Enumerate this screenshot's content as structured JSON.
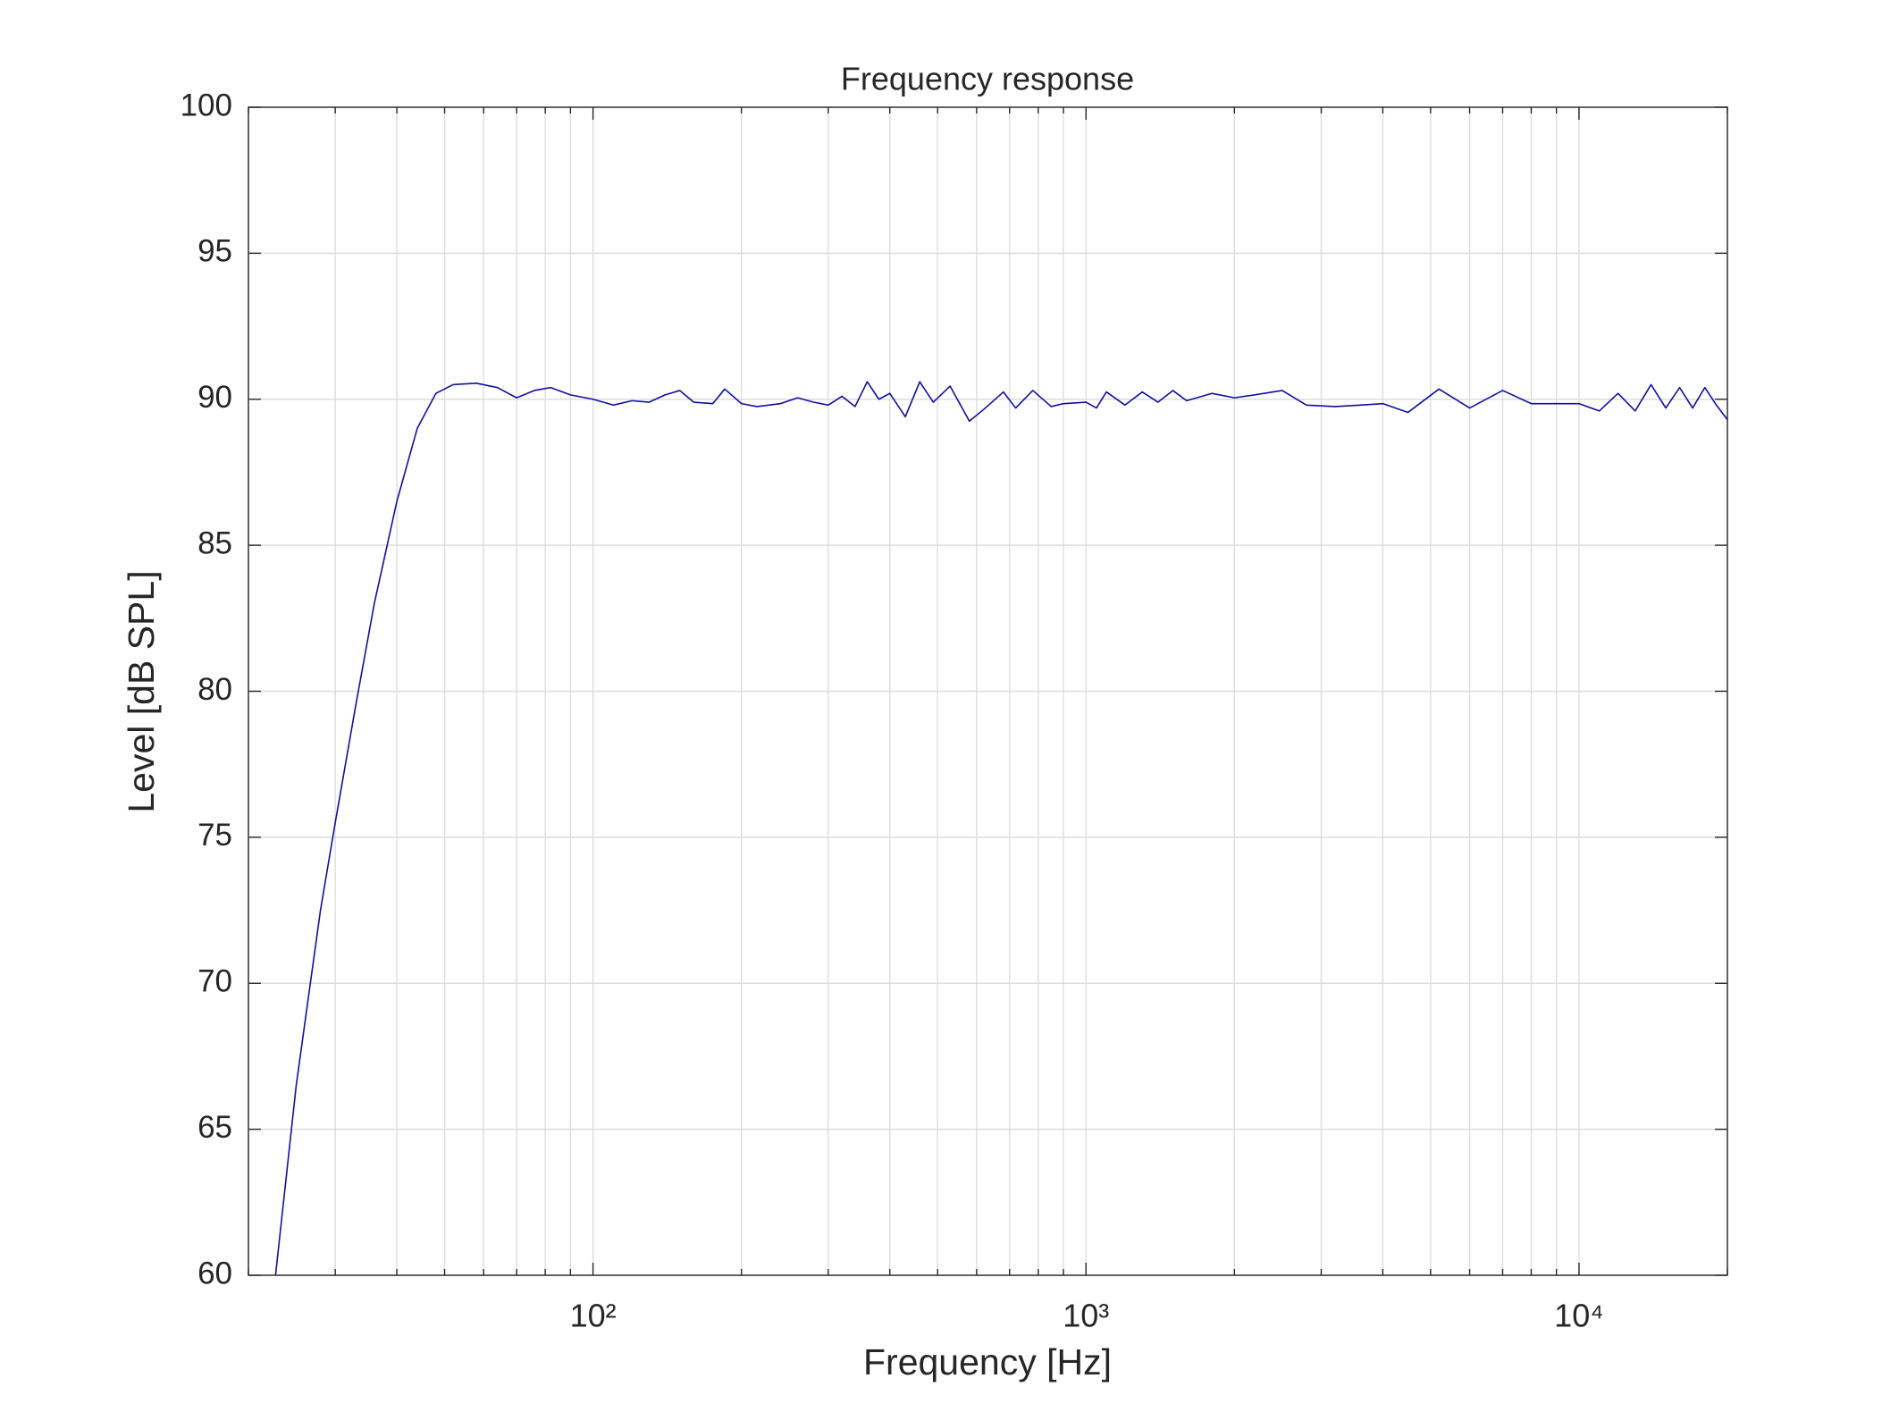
{
  "chart_data": {
    "type": "line",
    "title": "Frequency response",
    "x_label": "Frequency [Hz]",
    "y_label": "Level [dB SPL]",
    "x_log": true,
    "grid": true,
    "xlim": [
      20,
      20000
    ],
    "ylim": [
      60,
      100
    ],
    "xticks": [
      {
        "value": 100,
        "label": "10²"
      },
      {
        "value": 1000,
        "label": "10³"
      },
      {
        "value": 10000,
        "label": "10⁴"
      }
    ],
    "xminorticks": [
      20,
      30,
      40,
      50,
      60,
      70,
      80,
      90,
      200,
      300,
      400,
      500,
      600,
      700,
      800,
      900,
      2000,
      3000,
      4000,
      5000,
      6000,
      7000,
      8000,
      9000,
      20000
    ],
    "yticks": [
      60,
      65,
      70,
      75,
      80,
      85,
      90,
      95,
      100
    ],
    "x": [
      22.7,
      25,
      28,
      30,
      33,
      36,
      40,
      44,
      48,
      52,
      58,
      64,
      70,
      76,
      82,
      90,
      100,
      110,
      120,
      130,
      140,
      150,
      160,
      175,
      185,
      200,
      215,
      240,
      260,
      280,
      300,
      320,
      340,
      360,
      380,
      400,
      430,
      460,
      490,
      530,
      580,
      620,
      680,
      720,
      780,
      850,
      900,
      1000,
      1050,
      1100,
      1200,
      1300,
      1400,
      1500,
      1600,
      1800,
      2000,
      2200,
      2500,
      2800,
      3200,
      3600,
      4000,
      4500,
      5200,
      6000,
      7000,
      8000,
      9000,
      10000,
      11000,
      12000,
      13000,
      14000,
      15000,
      16000,
      17000,
      18000,
      19000,
      20000
    ],
    "series": [
      {
        "color": "#1010a0",
        "values": [
          60,
          66.5,
          72.5,
          75.5,
          79.5,
          83,
          86.5,
          89,
          90.2,
          90.5,
          90.55,
          90.4,
          90.05,
          90.3,
          90.4,
          90.15,
          90.0,
          89.8,
          89.95,
          89.9,
          90.15,
          90.3,
          89.9,
          89.85,
          90.35,
          89.85,
          89.75,
          89.85,
          90.05,
          89.9,
          89.8,
          90.1,
          89.75,
          90.6,
          90.0,
          90.2,
          89.4,
          90.6,
          89.9,
          90.45,
          89.25,
          89.65,
          90.25,
          89.7,
          90.3,
          89.75,
          89.85,
          89.9,
          89.7,
          90.25,
          89.8,
          90.25,
          89.9,
          90.3,
          89.95,
          90.2,
          90.05,
          90.15,
          90.3,
          89.8,
          89.75,
          89.8,
          89.85,
          89.55,
          90.35,
          89.7,
          90.3,
          89.85,
          89.85,
          89.85,
          89.6,
          90.2,
          89.6,
          90.5,
          89.7,
          90.4,
          89.7,
          90.4,
          89.8,
          89.3
        ]
      }
    ]
  }
}
